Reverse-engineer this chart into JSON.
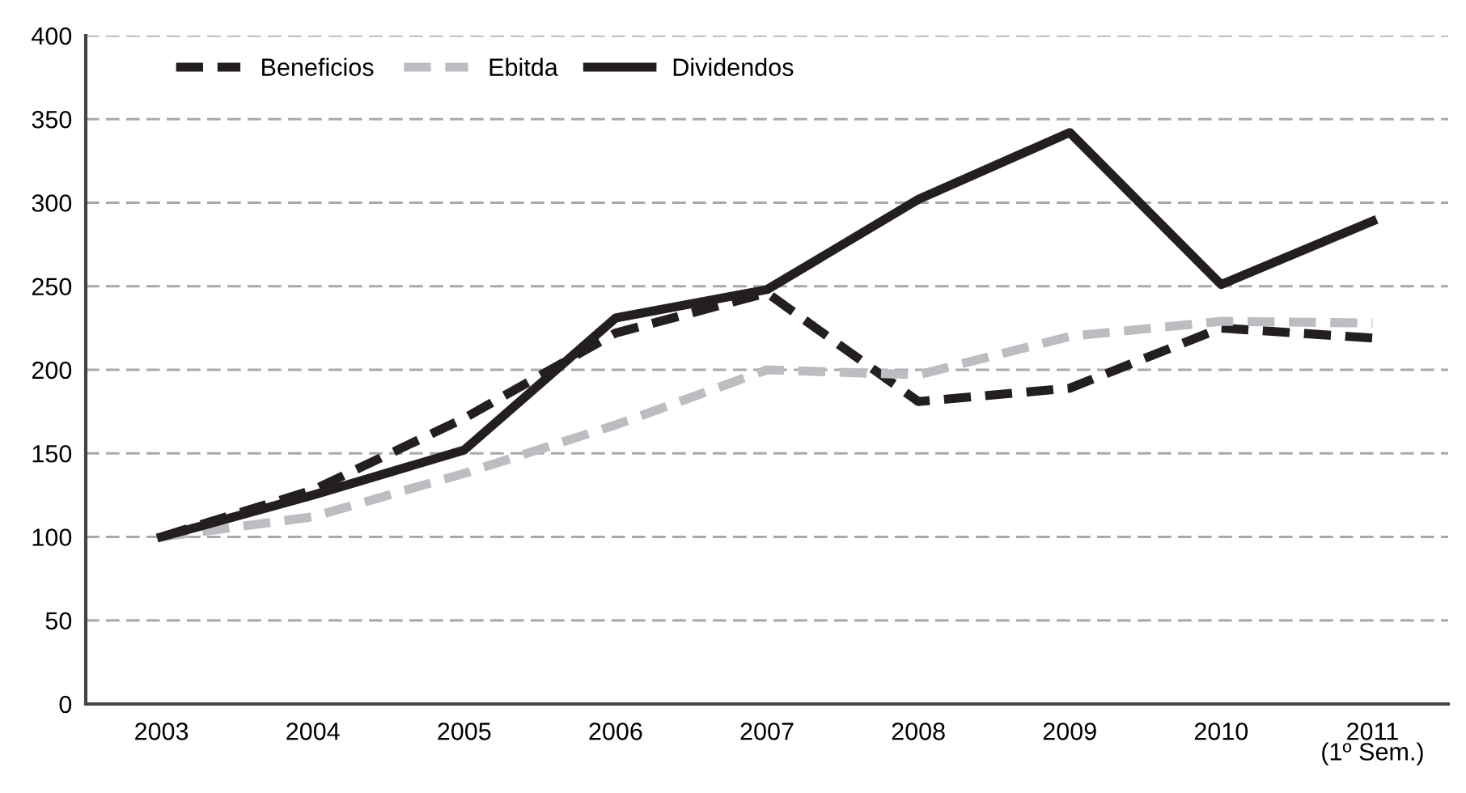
{
  "chart_data": {
    "type": "line",
    "categories": [
      "2003",
      "2004",
      "2005",
      "2006",
      "2007",
      "2008",
      "2009",
      "2010",
      "2011\n(1º Sem.)"
    ],
    "series": [
      {
        "name": "Beneficios",
        "color": "#231f20",
        "line_style": "dashed",
        "values": [
          100,
          128,
          171,
          222,
          246,
          181,
          189,
          225,
          219
        ]
      },
      {
        "name": "Ebitda",
        "color": "#bcbdc0",
        "line_style": "dashed",
        "values": [
          100,
          112,
          138,
          167,
          200,
          197,
          220,
          229,
          228
        ]
      },
      {
        "name": "Dividendos",
        "color": "#231f20",
        "line_style": "solid",
        "values": [
          100,
          125,
          152,
          231,
          248,
          302,
          342,
          251,
          289
        ]
      }
    ],
    "ylim": [
      0,
      400
    ],
    "yticks": [
      0,
      50,
      100,
      150,
      200,
      250,
      300,
      350,
      400
    ],
    "grid": "y",
    "legend": "top left",
    "marker": "none"
  }
}
